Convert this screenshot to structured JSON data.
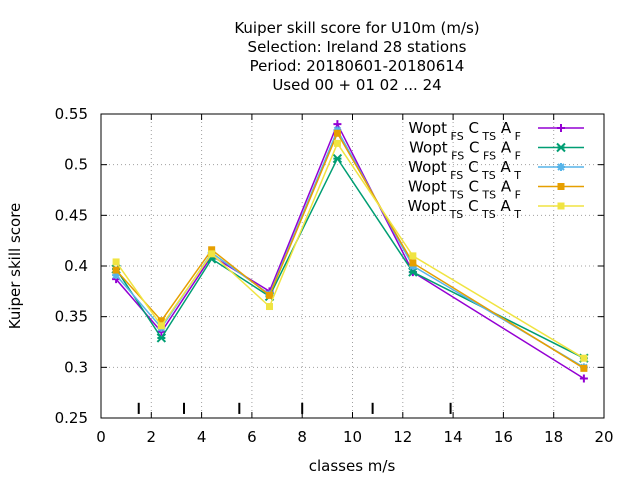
{
  "chart_data": {
    "type": "line",
    "title_lines": [
      "Kuiper skill score  for U10m (m/s)",
      "Selection: Ireland     28 stations",
      "Period: 20180601-20180614",
      "Used  00 + 01 02 ... 24"
    ],
    "xlabel": "classes m/s",
    "ylabel": "Kuiper skill score",
    "xlim": [
      0,
      20
    ],
    "ylim": [
      0.25,
      0.55
    ],
    "xticks": [
      0,
      2,
      4,
      6,
      8,
      10,
      12,
      14,
      16,
      18,
      20
    ],
    "yticks": [
      0.25,
      0.3,
      0.35,
      0.4,
      0.45,
      0.5,
      0.55
    ],
    "ytick_labels": [
      "0.25",
      "0.3",
      "0.35",
      "0.4",
      "0.45",
      "0.5",
      "0.55"
    ],
    "grid": true,
    "legend_position": "top-right",
    "class_boundaries": [
      1.5,
      3.3,
      5.5,
      8.0,
      10.8,
      13.9
    ],
    "x": [
      0.6,
      2.4,
      4.4,
      6.7,
      9.4,
      12.4,
      19.2
    ],
    "series": [
      {
        "name_parts": [
          "Wopt",
          "FS",
          "C",
          "TS",
          "A",
          "F"
        ],
        "color": "#9400d3",
        "marker": "plus",
        "values": [
          0.387,
          0.335,
          0.41,
          0.375,
          0.54,
          0.394,
          0.289
        ]
      },
      {
        "name_parts": [
          "Wopt",
          "FS",
          "C",
          "FS",
          "A",
          "F"
        ],
        "color": "#009e73",
        "marker": "x",
        "values": [
          0.397,
          0.329,
          0.407,
          0.37,
          0.506,
          0.394,
          0.309
        ]
      },
      {
        "name_parts": [
          "Wopt",
          "FS",
          "C",
          "TS",
          "A",
          "T"
        ],
        "color": "#56b4e9",
        "marker": "star",
        "values": [
          0.391,
          0.339,
          0.413,
          0.372,
          0.534,
          0.4,
          0.3
        ]
      },
      {
        "name_parts": [
          "Wopt",
          "TS",
          "C",
          "TS",
          "A",
          "F"
        ],
        "color": "#e69f00",
        "marker": "box",
        "values": [
          0.396,
          0.346,
          0.416,
          0.371,
          0.531,
          0.403,
          0.299
        ]
      },
      {
        "name_parts": [
          "Wopt",
          "TS",
          "C",
          "TS",
          "A",
          "T"
        ],
        "color": "#f0e442",
        "marker": "square",
        "values": [
          0.404,
          0.341,
          0.412,
          0.36,
          0.521,
          0.41,
          0.309
        ]
      }
    ]
  }
}
